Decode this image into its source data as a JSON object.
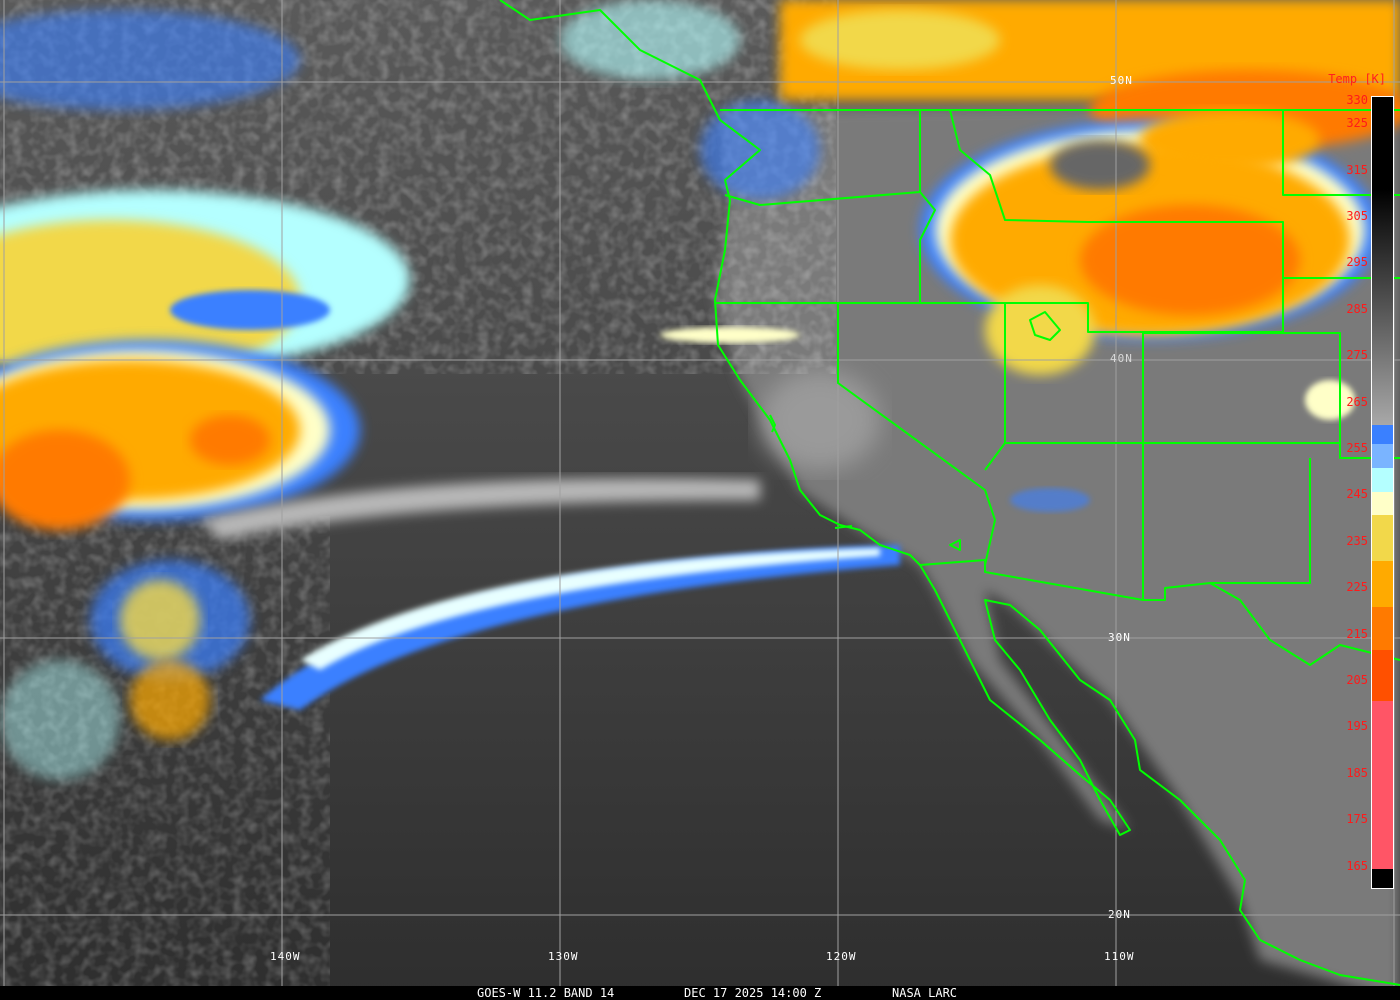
{
  "caption": {
    "product": "GOES-W 11.2 BAND 14",
    "datetime": "DEC 17 2025 14:00 Z",
    "source": "NASA LARC"
  },
  "graticule": {
    "lat_labels": [
      "50N",
      "40N",
      "30N",
      "20N"
    ],
    "lon_labels": [
      "140W",
      "130W",
      "120W",
      "110W"
    ]
  },
  "colorbar": {
    "title": "Temp [K]",
    "ticks": [
      "330",
      "325",
      "315",
      "305",
      "295",
      "285",
      "275",
      "265",
      "255",
      "245",
      "235",
      "225",
      "215",
      "205",
      "195",
      "185",
      "175",
      "165"
    ],
    "colors": {
      "warm_top": "#000000",
      "gray_low": "#a8a8a8",
      "blue": "#3a80ff",
      "light_blue": "#7ab4ff",
      "cyan": "#b4ffff",
      "pale_yellow": "#ffffc8",
      "yellow": "#f2d84a",
      "orange": "#ffaa00",
      "dark_orange": "#ff7a00",
      "red_orange": "#ff5000",
      "pink": "#ff5566",
      "cold_end": "#000000"
    }
  },
  "borders_color": "#00ff00",
  "grid_color": "#a0a0a0"
}
